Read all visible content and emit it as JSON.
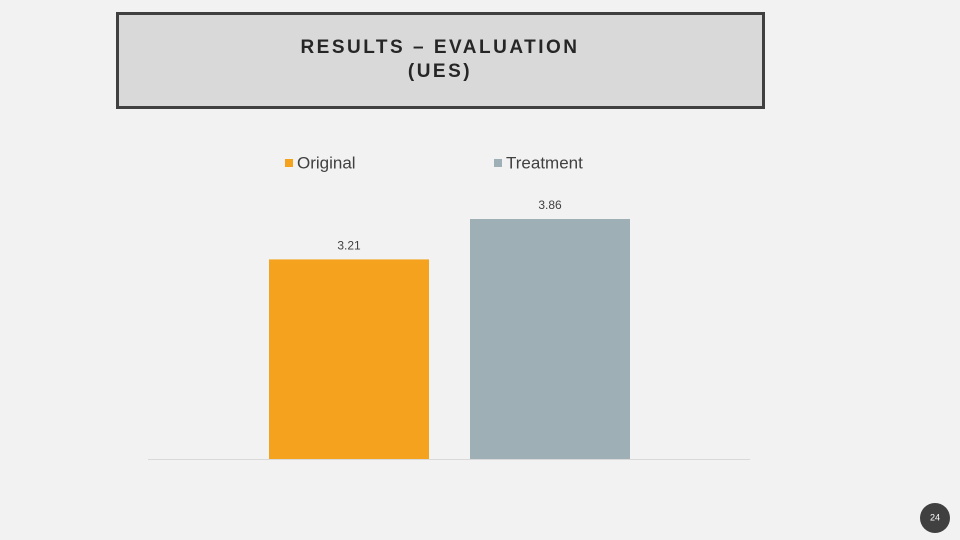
{
  "chart_data": {
    "type": "bar",
    "title": [
      "RESULTS – EVALUATION",
      "(UES)"
    ],
    "categories": [
      null
    ],
    "series": [
      {
        "name": "Original",
        "color": "#f5a31e",
        "values": [
          3.21
        ]
      },
      {
        "name": "Treatment",
        "color": "#9eafb5",
        "values": [
          3.86
        ]
      }
    ],
    "legend": "top"
  },
  "page_number": 24
}
